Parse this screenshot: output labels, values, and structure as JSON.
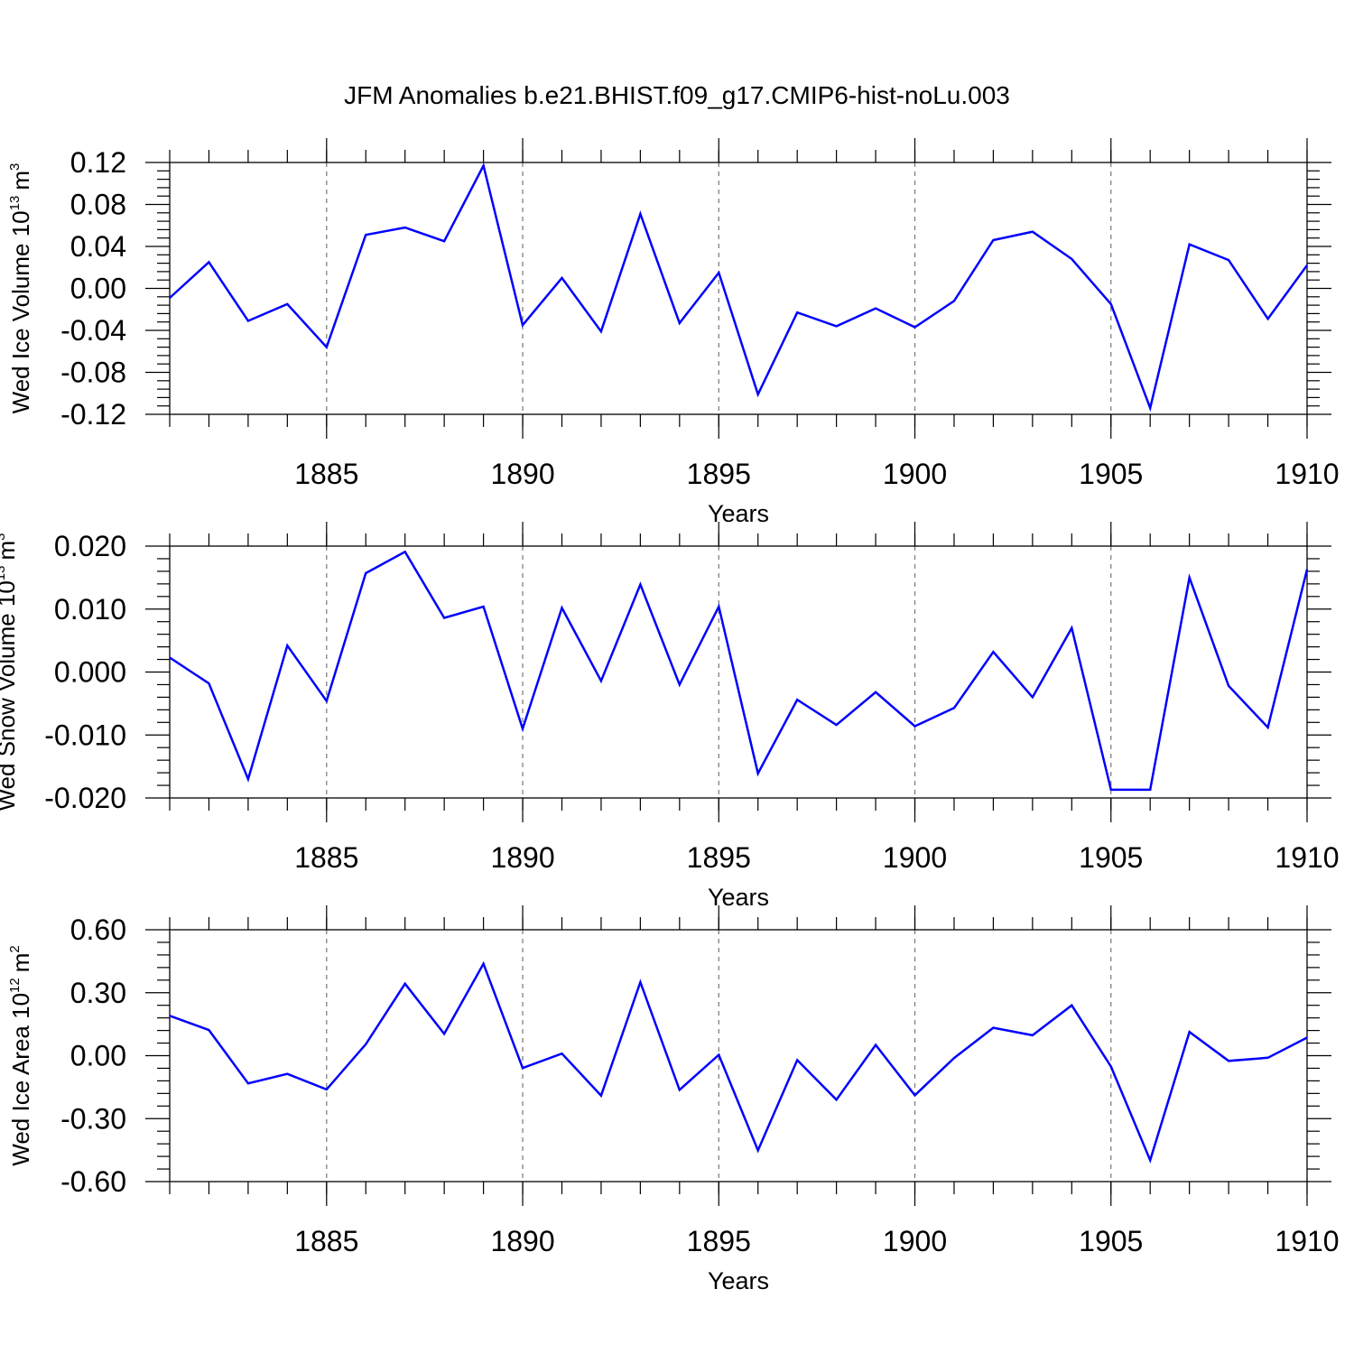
{
  "chart_data": {
    "title": "JFM Anomalies b.e21.BHIST.f09_g17.CMIP6-hist-noLu.003",
    "panels": [
      {
        "type": "line",
        "ylabel": {
          "text": "Wed Ice Volume 10",
          "exponent": "13",
          "unit": "m",
          "unit_exponent": "3"
        },
        "xlabel": "Years",
        "xlim": [
          1881,
          1910
        ],
        "ylim": [
          -0.12,
          0.12
        ],
        "xticks": [
          "1885",
          "1890",
          "1895",
          "1900",
          "1905",
          "1910"
        ],
        "yticks": [
          "0.12",
          "0.08",
          "0.04",
          "0.00",
          "-0.04",
          "-0.08",
          "-0.12"
        ],
        "line_color": "#0000ff",
        "x": [
          1881,
          1882,
          1883,
          1884,
          1885,
          1886,
          1887,
          1888,
          1889,
          1890,
          1891,
          1892,
          1893,
          1894,
          1895,
          1896,
          1897,
          1898,
          1899,
          1900,
          1901,
          1902,
          1903,
          1904,
          1905,
          1906,
          1907,
          1908,
          1909,
          1910
        ],
        "values": [
          -0.009,
          0.025,
          -0.031,
          -0.015,
          -0.056,
          0.051,
          0.058,
          0.045,
          0.117,
          -0.035,
          0.01,
          -0.041,
          0.071,
          -0.033,
          0.015,
          -0.101,
          -0.023,
          -0.036,
          -0.019,
          -0.037,
          -0.012,
          0.046,
          0.054,
          0.028,
          -0.015,
          -0.114,
          0.042,
          0.027,
          -0.029,
          0.022
        ]
      },
      {
        "type": "line",
        "ylabel": {
          "text": "Wed Snow Volume 10",
          "exponent": "13",
          "unit": "m",
          "unit_exponent": "3"
        },
        "xlabel": "Years",
        "xlim": [
          1881,
          1910
        ],
        "ylim": [
          -0.02,
          0.02
        ],
        "xticks": [
          "1885",
          "1890",
          "1895",
          "1900",
          "1905",
          "1910"
        ],
        "yticks": [
          "0.020",
          "0.010",
          "0.000",
          "-0.010",
          "-0.020"
        ],
        "line_color": "#0000ff",
        "x": [
          1881,
          1882,
          1883,
          1884,
          1885,
          1886,
          1887,
          1888,
          1889,
          1890,
          1891,
          1892,
          1893,
          1894,
          1895,
          1896,
          1897,
          1898,
          1899,
          1900,
          1901,
          1902,
          1903,
          1904,
          1905,
          1906,
          1907,
          1908,
          1909,
          1910
        ],
        "values": [
          0.0023,
          -0.0018,
          -0.017,
          0.0042,
          -0.0046,
          0.0157,
          0.0191,
          0.0086,
          0.0104,
          -0.009,
          0.0102,
          -0.0014,
          0.0139,
          -0.002,
          0.0104,
          -0.0161,
          -0.0044,
          -0.0084,
          -0.0032,
          -0.0086,
          -0.0057,
          0.0032,
          -0.004,
          0.007,
          -0.0187,
          -0.0187,
          0.015,
          -0.0022,
          -0.0088,
          0.0163
        ]
      },
      {
        "type": "line",
        "ylabel": {
          "text": "Wed Ice Area 10",
          "exponent": "12",
          "unit": "m",
          "unit_exponent": "2"
        },
        "xlabel": "Years",
        "xlim": [
          1881,
          1910
        ],
        "ylim": [
          -0.6,
          0.6
        ],
        "xticks": [
          "1885",
          "1890",
          "1895",
          "1900",
          "1905",
          "1910"
        ],
        "yticks": [
          "0.60",
          "0.30",
          "0.00",
          "-0.30",
          "-0.60"
        ],
        "line_color": "#0000ff",
        "x": [
          1881,
          1882,
          1883,
          1884,
          1885,
          1886,
          1887,
          1888,
          1889,
          1890,
          1891,
          1892,
          1893,
          1894,
          1895,
          1896,
          1897,
          1898,
          1899,
          1900,
          1901,
          1902,
          1903,
          1904,
          1905,
          1906,
          1907,
          1908,
          1909,
          1910
        ],
        "values": [
          0.19,
          0.122,
          -0.132,
          -0.087,
          -0.161,
          0.054,
          0.343,
          0.104,
          0.438,
          -0.059,
          0.01,
          -0.19,
          0.35,
          -0.163,
          0.004,
          -0.451,
          -0.021,
          -0.21,
          0.051,
          -0.189,
          -0.011,
          0.133,
          0.097,
          0.24,
          -0.052,
          -0.498,
          0.113,
          -0.025,
          -0.01,
          0.086
        ]
      }
    ]
  }
}
